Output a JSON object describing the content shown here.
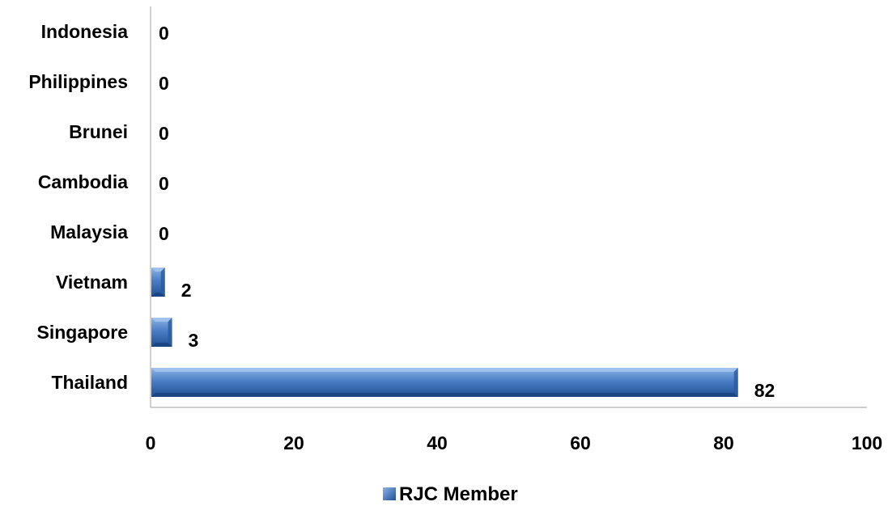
{
  "chart_data": {
    "type": "bar",
    "orientation": "horizontal",
    "categories": [
      "Indonesia",
      "Philippines",
      "Brunei",
      "Cambodia",
      "Malaysia",
      "Vietnam",
      "Singapore",
      "Thailand"
    ],
    "series": [
      {
        "name": "RJC Member",
        "values": [
          0,
          0,
          0,
          0,
          0,
          2,
          3,
          82
        ],
        "color": "#4472C4"
      }
    ],
    "xlim": [
      0,
      100
    ],
    "x_ticks": [
      0,
      20,
      40,
      60,
      80,
      100
    ],
    "grid": false,
    "legend_position": "bottom",
    "data_labels": true
  }
}
